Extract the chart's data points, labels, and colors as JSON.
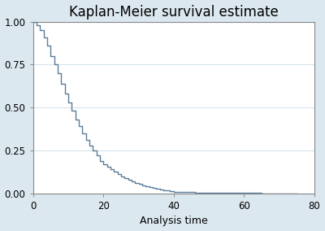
{
  "title": "Kaplan-Meier survival estimate",
  "xlabel": "Analysis time",
  "xlim": [
    0,
    80
  ],
  "ylim": [
    0,
    1.0
  ],
  "xticks": [
    0,
    20,
    40,
    60,
    80
  ],
  "yticks": [
    0.0,
    0.25,
    0.5,
    0.75,
    1.0
  ],
  "ytick_labels": [
    "0.00",
    "0.25",
    "0.50",
    "0.75",
    "1.00"
  ],
  "line_color": "#5b7d99",
  "fig_bg_color": "#dce8f0",
  "plot_bg_color": "#ffffff",
  "grid_color": "#d8e4ec",
  "title_fontsize": 12,
  "axis_fontsize": 9,
  "tick_fontsize": 8.5,
  "times": [
    0,
    1,
    2,
    3,
    4,
    5,
    6,
    7,
    8,
    9,
    10,
    11,
    12,
    13,
    14,
    15,
    16,
    17,
    18,
    19,
    20,
    21,
    22,
    23,
    24,
    25,
    26,
    27,
    28,
    29,
    30,
    31,
    32,
    33,
    34,
    35,
    36,
    37,
    38,
    39,
    40,
    42,
    44,
    46,
    48,
    50,
    55,
    60,
    65,
    70,
    75
  ],
  "surv": [
    1.0,
    0.98,
    0.95,
    0.91,
    0.86,
    0.8,
    0.75,
    0.7,
    0.64,
    0.58,
    0.53,
    0.48,
    0.43,
    0.39,
    0.35,
    0.31,
    0.28,
    0.25,
    0.22,
    0.19,
    0.17,
    0.155,
    0.14,
    0.125,
    0.112,
    0.1,
    0.089,
    0.079,
    0.07,
    0.062,
    0.055,
    0.048,
    0.042,
    0.037,
    0.032,
    0.028,
    0.024,
    0.02,
    0.017,
    0.014,
    0.011,
    0.009,
    0.007,
    0.006,
    0.005,
    0.004,
    0.003,
    0.002,
    0.001,
    0.0005,
    0.0
  ]
}
